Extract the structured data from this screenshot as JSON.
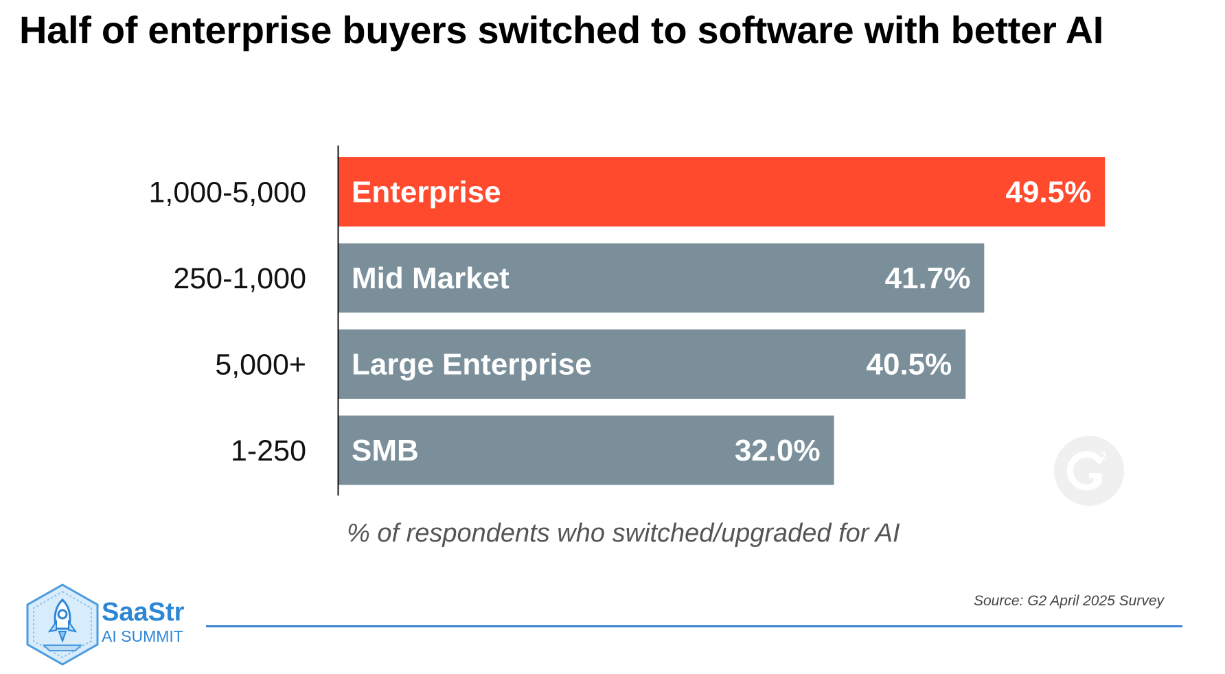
{
  "title": "Half of enterprise buyers switched to software with better AI",
  "chart_data": {
    "type": "bar",
    "orientation": "horizontal",
    "categories": [
      "1,000-5,000",
      "250-1,000",
      "5,000+",
      "1-250"
    ],
    "bar_labels": [
      "Enterprise",
      "Mid Market",
      "Large Enterprise",
      "SMB"
    ],
    "values": [
      49.5,
      41.7,
      40.5,
      32.0
    ],
    "value_labels": [
      "49.5%",
      "41.7%",
      "40.5%",
      "32.0%"
    ],
    "xlabel": "% of respondents who switched/upgraded for AI",
    "ylabel": "",
    "xlim": [
      0,
      55
    ],
    "highlight_index": 0,
    "colors": {
      "highlight": "#ff4a2e",
      "default": "#7a8f9a"
    },
    "grid": false,
    "legend": "none"
  },
  "source": "Source: G2 April 2025 Survey",
  "logo": {
    "name": "SaaStr",
    "subtitle": "AI SUMMIT",
    "icon": "rocket-icon"
  },
  "watermark": {
    "text": "G2",
    "icon": "g2-logo-icon"
  },
  "accent_color": "#3a82d4"
}
